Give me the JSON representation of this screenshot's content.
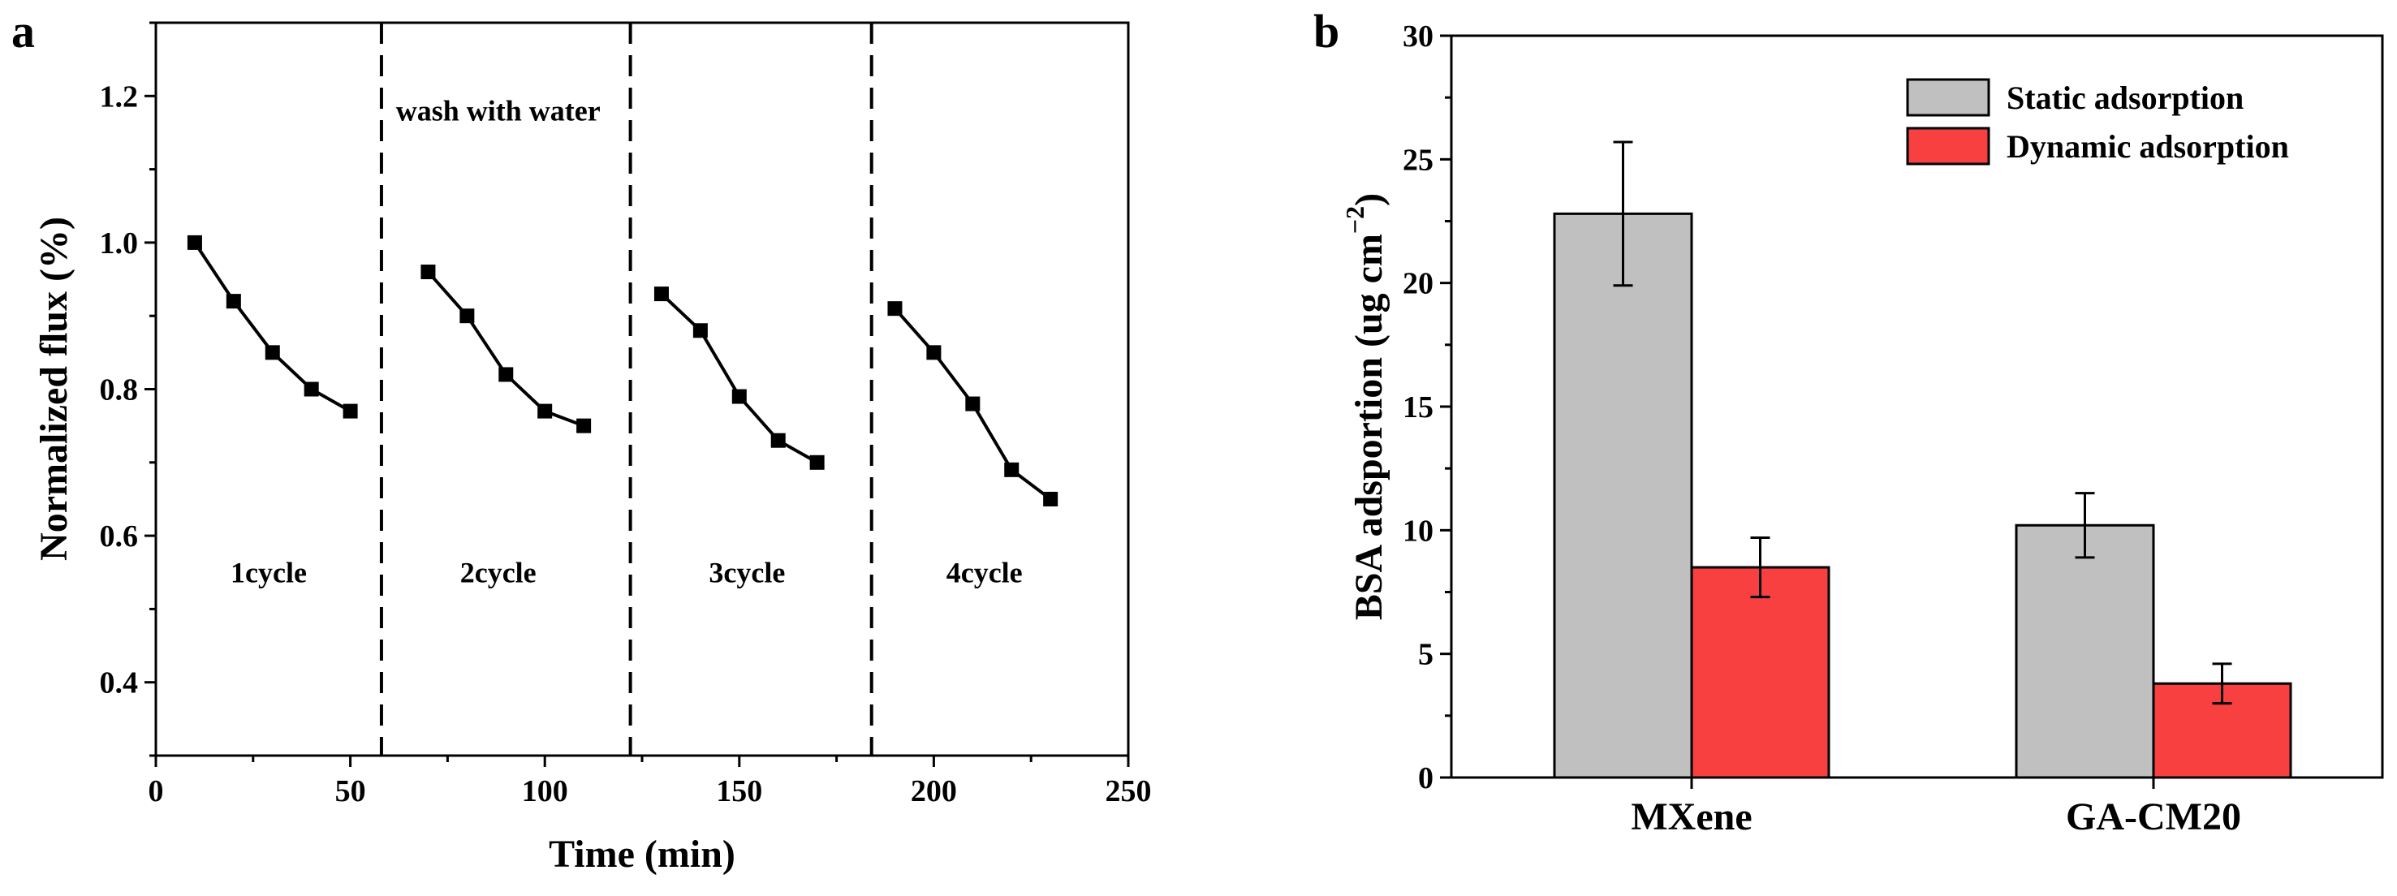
{
  "chart_data": [
    {
      "panel": "a",
      "type": "line",
      "xlabel": "Time (min)",
      "ylabel": "Normalized flux (%)",
      "xlim": [
        0,
        250
      ],
      "ylim": [
        0.3,
        1.3
      ],
      "xticks": [
        0,
        50,
        100,
        150,
        200,
        250
      ],
      "yticks": [
        0.4,
        0.6,
        0.8,
        1.0,
        1.2
      ],
      "xtick_labels": [
        "0",
        "50",
        "100",
        "150",
        "200",
        "250"
      ],
      "ytick_labels": [
        "0.4",
        "0.6",
        "0.8",
        "1.0",
        "1.2"
      ],
      "grid": false,
      "marker": "square",
      "segments": [
        {
          "x": [
            10,
            20,
            30,
            40,
            50
          ],
          "y": [
            1.0,
            0.92,
            0.85,
            0.8,
            0.77
          ]
        },
        {
          "x": [
            70,
            80,
            90,
            100,
            110
          ],
          "y": [
            0.96,
            0.9,
            0.82,
            0.77,
            0.75
          ]
        },
        {
          "x": [
            130,
            140,
            150,
            160,
            170
          ],
          "y": [
            0.93,
            0.88,
            0.79,
            0.73,
            0.7
          ]
        },
        {
          "x": [
            190,
            200,
            210,
            220,
            230
          ],
          "y": [
            0.91,
            0.85,
            0.78,
            0.69,
            0.65
          ]
        }
      ],
      "dividers_x": [
        58,
        122,
        184
      ],
      "annotations": [
        {
          "text": "wash with water",
          "x": 88,
          "y": 1.18
        },
        {
          "text": "1cycle",
          "x": 29,
          "y": 0.55
        },
        {
          "text": "2cycle",
          "x": 88,
          "y": 0.55
        },
        {
          "text": "3cycle",
          "x": 152,
          "y": 0.55
        },
        {
          "text": "4cycle",
          "x": 213,
          "y": 0.55
        }
      ]
    },
    {
      "panel": "b",
      "type": "bar",
      "categories": [
        "MXene",
        "GA-CM20"
      ],
      "series": [
        {
          "name": "Static adsorption",
          "color": "#c0c0c0",
          "values": [
            22.8,
            10.2
          ],
          "errors": [
            2.9,
            1.3
          ]
        },
        {
          "name": "Dynamic adsorption",
          "color": "#f94040",
          "values": [
            8.5,
            3.8
          ],
          "errors": [
            1.2,
            0.8
          ]
        }
      ],
      "ylabel_main": "BSA adsportion (ug cm",
      "ylabel_sup": "−2",
      "ylabel_close": ")",
      "ylim": [
        0,
        30
      ],
      "yticks": [
        0,
        5,
        10,
        15,
        20,
        25,
        30
      ],
      "ytick_labels": [
        "0",
        "5",
        "10",
        "15",
        "20",
        "25",
        "30"
      ],
      "grid": false,
      "legend_position": "top-right"
    }
  ]
}
